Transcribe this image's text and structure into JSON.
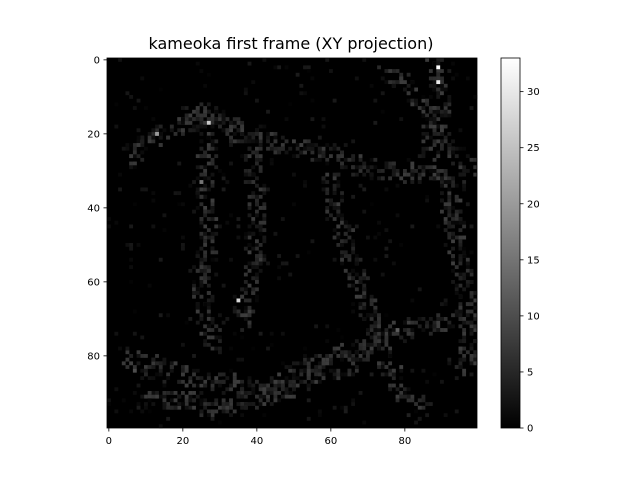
{
  "chart_data": {
    "type": "heatmap",
    "title": "kameoka first frame (XY projection)",
    "xlabel": "",
    "ylabel": "",
    "grid": false,
    "colormap": "gray",
    "shape": [
      100,
      100
    ],
    "xlim": [
      -0.5,
      99.5
    ],
    "ylim": [
      99.5,
      -0.5
    ],
    "x_ticks": [
      0,
      20,
      40,
      60,
      80
    ],
    "x_tick_labels": [
      "0",
      "20",
      "40",
      "60",
      "80"
    ],
    "y_ticks": [
      0,
      20,
      40,
      60,
      80
    ],
    "y_tick_labels": [
      "0",
      "20",
      "40",
      "60",
      "80"
    ],
    "colorbar": {
      "min": 0,
      "max": 33,
      "ticks": [
        0,
        5,
        10,
        15,
        20,
        25,
        30
      ],
      "tick_labels": [
        "0",
        "5",
        "10",
        "15",
        "20",
        "25",
        "30"
      ]
    },
    "hotspots": [
      {
        "x": 89,
        "y": 2,
        "value": 33
      },
      {
        "x": 89,
        "y": 6,
        "value": 30
      },
      {
        "x": 27,
        "y": 17,
        "value": 26
      },
      {
        "x": 13,
        "y": 20,
        "value": 20
      },
      {
        "x": 35,
        "y": 65,
        "value": 28
      },
      {
        "x": 25,
        "y": 33,
        "value": 15
      },
      {
        "x": 78,
        "y": 73,
        "value": 12
      },
      {
        "x": 7,
        "y": 84,
        "value": 10
      },
      {
        "x": 95,
        "y": 78,
        "value": 8
      }
    ]
  }
}
